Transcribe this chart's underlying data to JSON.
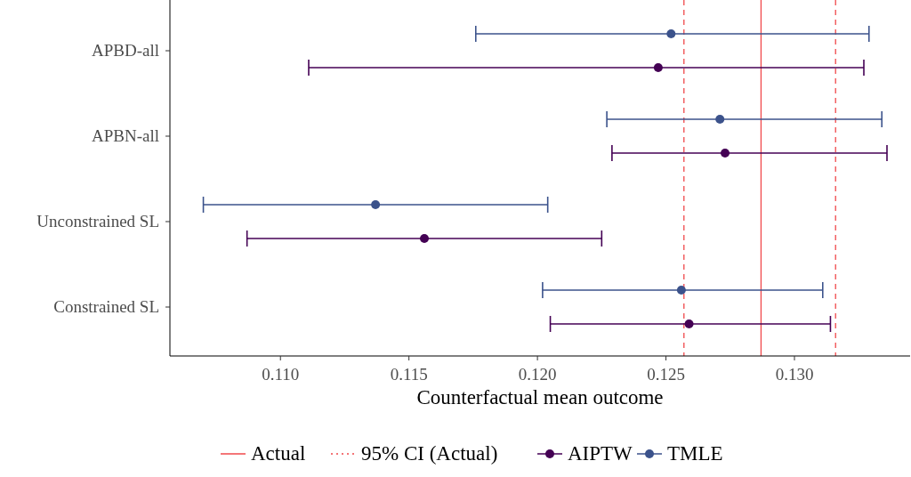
{
  "chart_data": {
    "type": "scatter",
    "orientation": "horizontal",
    "xlabel": "Counterfactual mean outcome",
    "categories": [
      "APBD-all",
      "APBN-all",
      "Unconstrained SL",
      "Constrained SL"
    ],
    "series": [
      {
        "name": "AIPTW",
        "color": "#440154",
        "values": [
          0.1247,
          0.1273,
          0.1156,
          0.1259
        ],
        "errors": [
          [
            0.1111,
            0.1327
          ],
          [
            0.1229,
            0.1336
          ],
          [
            0.1087,
            0.1225
          ],
          [
            0.1205,
            0.1314
          ]
        ]
      },
      {
        "name": "TMLE",
        "color": "#3b528b",
        "values": [
          0.1252,
          0.1271,
          0.1137,
          0.1256
        ],
        "errors": [
          [
            0.1176,
            0.1329
          ],
          [
            0.1227,
            0.1334
          ],
          [
            0.107,
            0.1204
          ],
          [
            0.1202,
            0.1311
          ]
        ]
      }
    ],
    "ref_lines": [
      {
        "axis": "x",
        "value": 0.1287,
        "label": "Actual",
        "color": "#f0484b",
        "line_style": "solid"
      },
      {
        "axis": "x",
        "value": 0.1257,
        "label": "95% CI (Actual)",
        "color": "#f0484b",
        "line_style": "dashed"
      },
      {
        "axis": "x",
        "value": 0.1316,
        "color": "#f0484b",
        "line_style": "dashed"
      }
    ],
    "xlim": [
      0.1057,
      0.1345
    ],
    "xticks": [
      {
        "value": 0.11,
        "label": "0.110"
      },
      {
        "value": 0.115,
        "label": "0.115"
      },
      {
        "value": 0.12,
        "label": "0.120"
      },
      {
        "value": 0.125,
        "label": "0.125"
      },
      {
        "value": 0.13,
        "label": "0.130"
      }
    ],
    "grid": false,
    "legend": "bottom",
    "marker": "circle"
  }
}
